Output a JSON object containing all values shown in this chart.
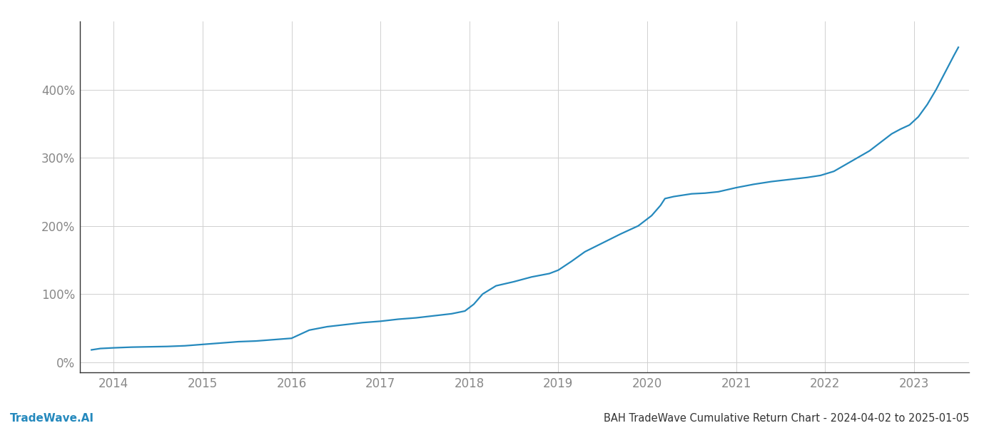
{
  "title": "BAH TradeWave Cumulative Return Chart - 2024-04-02 to 2025-01-05",
  "watermark": "TradeWave.AI",
  "line_color": "#2589bd",
  "background_color": "#ffffff",
  "grid_color": "#d0d0d0",
  "x_tick_labels": [
    "2014",
    "2015",
    "2016",
    "2017",
    "2018",
    "2019",
    "2020",
    "2021",
    "2022",
    "2023"
  ],
  "y_tick_labels": [
    "0%",
    "100%",
    "200%",
    "300%",
    "400%"
  ],
  "y_tick_values": [
    0,
    100,
    200,
    300,
    400
  ],
  "xlim_start": 2013.62,
  "xlim_end": 2023.62,
  "ylim_bottom": -15,
  "ylim_top": 500,
  "data_points": [
    [
      2013.75,
      18
    ],
    [
      2013.85,
      20
    ],
    [
      2014.0,
      21
    ],
    [
      2014.2,
      22
    ],
    [
      2014.4,
      22.5
    ],
    [
      2014.6,
      23
    ],
    [
      2014.8,
      24
    ],
    [
      2015.0,
      26
    ],
    [
      2015.2,
      28
    ],
    [
      2015.4,
      30
    ],
    [
      2015.6,
      31
    ],
    [
      2015.8,
      33
    ],
    [
      2016.0,
      35
    ],
    [
      2016.2,
      47
    ],
    [
      2016.4,
      52
    ],
    [
      2016.6,
      55
    ],
    [
      2016.8,
      58
    ],
    [
      2017.0,
      60
    ],
    [
      2017.2,
      63
    ],
    [
      2017.4,
      65
    ],
    [
      2017.6,
      68
    ],
    [
      2017.8,
      71
    ],
    [
      2017.95,
      75
    ],
    [
      2018.05,
      85
    ],
    [
      2018.15,
      100
    ],
    [
      2018.3,
      112
    ],
    [
      2018.5,
      118
    ],
    [
      2018.7,
      125
    ],
    [
      2018.9,
      130
    ],
    [
      2019.0,
      135
    ],
    [
      2019.15,
      148
    ],
    [
      2019.3,
      162
    ],
    [
      2019.5,
      175
    ],
    [
      2019.7,
      188
    ],
    [
      2019.9,
      200
    ],
    [
      2020.05,
      215
    ],
    [
      2020.15,
      230
    ],
    [
      2020.2,
      240
    ],
    [
      2020.3,
      243
    ],
    [
      2020.4,
      245
    ],
    [
      2020.5,
      247
    ],
    [
      2020.65,
      248
    ],
    [
      2020.8,
      250
    ],
    [
      2021.0,
      256
    ],
    [
      2021.2,
      261
    ],
    [
      2021.4,
      265
    ],
    [
      2021.6,
      268
    ],
    [
      2021.8,
      271
    ],
    [
      2021.95,
      274
    ],
    [
      2022.1,
      280
    ],
    [
      2022.3,
      295
    ],
    [
      2022.5,
      310
    ],
    [
      2022.65,
      325
    ],
    [
      2022.75,
      335
    ],
    [
      2022.85,
      342
    ],
    [
      2022.95,
      348
    ],
    [
      2023.05,
      360
    ],
    [
      2023.15,
      378
    ],
    [
      2023.25,
      400
    ],
    [
      2023.35,
      425
    ],
    [
      2023.45,
      450
    ],
    [
      2023.5,
      462
    ]
  ],
  "title_fontsize": 10.5,
  "watermark_fontsize": 11,
  "tick_fontsize": 12,
  "line_width": 1.6,
  "spine_color": "#333333",
  "tick_color": "#888888",
  "title_color": "#333333",
  "watermark_color": "#2589bd"
}
